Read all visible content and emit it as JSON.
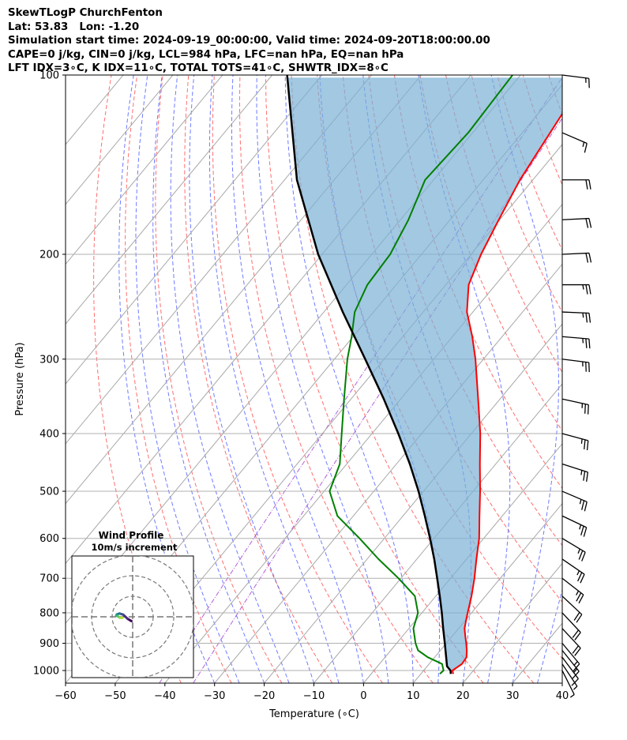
{
  "header": {
    "lines": [
      "SkewTLogP ChurchFenton",
      "Lat: 53.83   Lon: -1.20",
      "Simulation start time: 2024-09-19_00:00:00, Valid time: 2024-09-20T18:00:00.00",
      "CAPE=0 j/kg, CIN=0 j/kg, LCL=984 hPa, LFC=nan hPa, EQ=nan hPa",
      "LFT IDX=3∘C, K IDX=11∘C, TOTAL TOTS=41∘C, SHWTR_IDX=8∘C"
    ]
  },
  "chart_data": {
    "type": "line",
    "subtype": "skew-T log-P diagram",
    "xlabel": "Temperature (∘C)",
    "ylabel": "Pressure (hPa)",
    "xlim": [
      -60,
      40
    ],
    "ylim": [
      1050,
      100
    ],
    "y_scale": "log",
    "x_ticks": [
      -60,
      -50,
      -40,
      -30,
      -20,
      -10,
      0,
      10,
      20,
      30,
      40
    ],
    "x_tick_labels": [
      "−60",
      "−50",
      "−40",
      "−30",
      "−20",
      "−10",
      "0",
      "10",
      "20",
      "30",
      "40"
    ],
    "y_ticks": [
      1000,
      900,
      800,
      700,
      600,
      500,
      400,
      300,
      200,
      100
    ],
    "grid": true,
    "series": [
      {
        "color": "#ff0000",
        "p": [
          1013,
          1000,
          975,
          950,
          925,
          900,
          875,
          850,
          825,
          800,
          750,
          700,
          650,
          600,
          550,
          500,
          450,
          400,
          350,
          300,
          275,
          250,
          225,
          200,
          175,
          150,
          125,
          100
        ],
        "t": [
          16.5,
          15.8,
          16.6,
          16.4,
          15.3,
          14.0,
          12.6,
          11.2,
          10.2,
          9.2,
          7.2,
          4.8,
          2.0,
          -0.9,
          -4.6,
          -8.6,
          -13.2,
          -18.2,
          -24.4,
          -31.6,
          -36.0,
          -41.2,
          -45.4,
          -48.0,
          -50.2,
          -52.6,
          -54.4,
          -56.6
        ]
      },
      {
        "color": "#008000",
        "p": [
          1013,
          1000,
          975,
          950,
          925,
          900,
          850,
          800,
          750,
          700,
          650,
          600,
          550,
          500,
          450,
          400,
          350,
          300,
          275,
          250,
          225,
          200,
          175,
          150,
          125,
          100
        ],
        "t": [
          13.8,
          14.0,
          12.6,
          8.6,
          5.5,
          3.8,
          0.9,
          -0.8,
          -4.2,
          -10.5,
          -17.7,
          -25.0,
          -33.2,
          -38.9,
          -41.4,
          -46.1,
          -51.4,
          -57.4,
          -60.3,
          -63.8,
          -65.8,
          -66.3,
          -68.4,
          -71.7,
          -70.9,
          -71.6
        ]
      },
      {
        "color": "#000000",
        "p": [
          1013,
          1000,
          984,
          950,
          900,
          850,
          800,
          750,
          700,
          650,
          600,
          550,
          500,
          450,
          400,
          350,
          300,
          250,
          200,
          150,
          100
        ],
        "t": [
          16.0,
          15.4,
          14.0,
          12.3,
          9.7,
          6.9,
          4.0,
          0.8,
          -2.7,
          -6.5,
          -10.8,
          -15.6,
          -21.0,
          -27.3,
          -34.7,
          -43.4,
          -53.8,
          -66.2,
          -80.8,
          -97.5,
          -117.0
        ]
      }
    ],
    "wind_barbs": {
      "p": [
        1000,
        975,
        950,
        925,
        900,
        850,
        800,
        750,
        700,
        650,
        600,
        550,
        500,
        450,
        400,
        350,
        300,
        275,
        250,
        225,
        200,
        175,
        150,
        125,
        100
      ],
      "u_kt": [
        -2,
        -4,
        -6,
        -8,
        -10,
        -14,
        -15,
        -16,
        -18,
        -19,
        -20,
        -21,
        -21,
        -22,
        -22,
        -23,
        -24,
        -24,
        -24,
        -23,
        -22,
        -20,
        -18,
        -14,
        -16
      ],
      "v_kt": [
        4,
        6,
        8,
        10,
        12,
        15,
        16,
        15,
        14,
        13,
        12,
        10,
        9,
        7,
        6,
        5,
        3,
        2,
        1,
        0,
        -1,
        -1,
        0,
        6,
        2
      ]
    },
    "hodograph": {
      "title": "Wind Profile",
      "subtitle": "10m/s increment",
      "ring_step_ms": 10,
      "u_ms": [
        -0.6,
        -2.4,
        -4.7,
        -6.4,
        -7.7,
        -8.0,
        -7.2,
        -6.2,
        -5.0
      ],
      "v_ms": [
        -2.1,
        -1.0,
        1.1,
        1.6,
        1.2,
        0.6,
        0.2,
        -0.5,
        -0.5
      ]
    }
  }
}
